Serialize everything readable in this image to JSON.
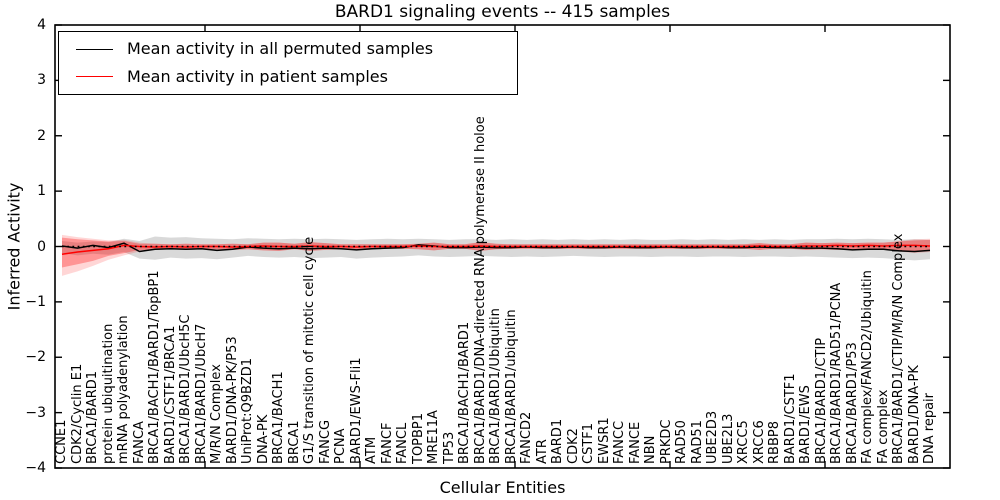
{
  "title": "BARD1 signaling events -- 415 samples",
  "colors": {
    "permuted_line": "#000000",
    "patient_line": "#ff0000",
    "permuted_band": "#000000",
    "patient_band": "#ff0000",
    "background": "#ffffff"
  },
  "chart_data": {
    "type": "line",
    "title": "BARD1 signaling events -- 415 samples",
    "xlabel": "Cellular Entities",
    "ylabel": "Inferred Activity",
    "ylim": [
      -4,
      4
    ],
    "grid": false,
    "legend_position": "upper left",
    "baseline": {
      "y": 0,
      "style": "dotted",
      "color": "#000000"
    },
    "yticks": [
      {
        "v": 4,
        "label": "4"
      },
      {
        "v": 3,
        "label": "3"
      },
      {
        "v": 2,
        "label": "2"
      },
      {
        "v": 1,
        "label": "1"
      },
      {
        "v": 0,
        "label": "0"
      },
      {
        "v": -1,
        "label": "−1"
      },
      {
        "v": -2,
        "label": "−2"
      },
      {
        "v": -3,
        "label": "−3"
      },
      {
        "v": -4,
        "label": "−4"
      }
    ],
    "categories": [
      "CCNE1",
      "CDK2/Cyclin E1",
      "BRCA1/BARD1",
      "protein ubiquitination",
      "mRNA polyadenylation",
      "FANCA",
      "BRCA1/BACH1/BARD1/TopBP1",
      "BARD1/CSTF1/BRCA1",
      "BRCA1/BARD1/UbcH5C",
      "BRCA1/BARD1/UbcH7",
      "M/R/N Complex",
      "BARD1/DNA-PK/P53",
      "UniProt:Q9BZD1",
      "DNA-PK",
      "BRCA1/BACH1",
      "BRCA1",
      "G1/S transition of mitotic cell cycle",
      "FANCG",
      "PCNA",
      "BARD1/EWS-Fli1",
      "ATM",
      "FANCF",
      "FANCL",
      "TOPBP1",
      "MRE11A",
      "TP53",
      "BRCA1/BACH1/BARD1",
      "BRCA1/BARD1/DNA-directed RNA polymerase II holoe",
      "BRCA1/BARD1/Ubiquitin",
      "BRCA1/BARD1/ubiquitin",
      "FANCD2",
      "ATR",
      "BARD1",
      "CDK2",
      "CSTF1",
      "EWSR1",
      "FANCC",
      "FANCE",
      "NBN",
      "PRKDC",
      "RAD50",
      "RAD51",
      "UBE2D3",
      "UBE2L3",
      "XRCC5",
      "XRCC6",
      "RBBP8",
      "BARD1/CSTF1",
      "BARD1/EWS",
      "BRCA1/BARD1/CTIP",
      "BRCA1/BARD1/RAD51/PCNA",
      "BRCA1/BARD1/P53",
      "FA complex/FANCD2/Ubiquitin",
      "FA complex",
      "BRCA1/BARD1/CTIP/M/R/N Complex",
      "BARD1/DNA-PK",
      "DNA repair"
    ],
    "series": [
      {
        "name": "Mean activity in all permuted samples",
        "color": "#000000",
        "band_opacity": 0.15,
        "values": [
          0.01,
          -0.03,
          0.02,
          -0.02,
          0.06,
          -0.09,
          -0.05,
          -0.04,
          -0.05,
          -0.04,
          -0.07,
          -0.05,
          -0.01,
          -0.03,
          -0.04,
          -0.03,
          -0.04,
          -0.03,
          -0.04,
          -0.06,
          -0.04,
          -0.03,
          -0.02,
          0.03,
          0.01,
          -0.02,
          -0.02,
          -0.01,
          -0.02,
          -0.02,
          -0.01,
          -0.02,
          -0.02,
          -0.01,
          -0.02,
          -0.02,
          -0.01,
          -0.02,
          -0.02,
          -0.01,
          -0.02,
          -0.02,
          -0.01,
          -0.02,
          -0.02,
          -0.01,
          -0.02,
          -0.02,
          -0.03,
          -0.03,
          -0.04,
          -0.06,
          -0.05,
          -0.05,
          -0.08,
          -0.09,
          -0.07
        ],
        "band_upper": [
          0.1,
          0.07,
          0.09,
          0.08,
          0.14,
          0.1,
          0.18,
          0.16,
          0.17,
          0.15,
          0.14,
          0.13,
          0.15,
          0.14,
          0.13,
          0.14,
          0.13,
          0.14,
          0.13,
          0.12,
          0.13,
          0.14,
          0.13,
          0.14,
          0.13,
          0.12,
          0.13,
          0.13,
          0.12,
          0.13,
          0.12,
          0.13,
          0.12,
          0.13,
          0.12,
          0.13,
          0.12,
          0.13,
          0.12,
          0.12,
          0.13,
          0.12,
          0.13,
          0.12,
          0.13,
          0.12,
          0.13,
          0.12,
          0.13,
          0.13,
          0.14,
          0.13,
          0.14,
          0.13,
          0.12,
          0.13,
          0.12
        ],
        "band_lower": [
          -0.12,
          -0.16,
          -0.13,
          -0.15,
          -0.1,
          -0.22,
          -0.24,
          -0.2,
          -0.22,
          -0.21,
          -0.23,
          -0.2,
          -0.17,
          -0.19,
          -0.2,
          -0.19,
          -0.21,
          -0.2,
          -0.19,
          -0.22,
          -0.2,
          -0.19,
          -0.18,
          -0.16,
          -0.18,
          -0.19,
          -0.18,
          -0.17,
          -0.18,
          -0.19,
          -0.18,
          -0.19,
          -0.18,
          -0.17,
          -0.18,
          -0.19,
          -0.18,
          -0.18,
          -0.19,
          -0.18,
          -0.18,
          -0.19,
          -0.18,
          -0.18,
          -0.19,
          -0.18,
          -0.18,
          -0.19,
          -0.18,
          -0.19,
          -0.2,
          -0.21,
          -0.2,
          -0.21,
          -0.23,
          -0.25,
          -0.23
        ]
      },
      {
        "name": "Mean activity in patient samples",
        "color": "#ff0000",
        "band_opacity": 0.3,
        "outer_band_opacity": 0.16,
        "values": [
          -0.14,
          -0.1,
          -0.07,
          -0.04,
          0.02,
          0.0,
          -0.01,
          0.0,
          -0.01,
          0.0,
          0.0,
          -0.01,
          0.0,
          0.01,
          0.0,
          0.0,
          0.01,
          0.0,
          0.0,
          -0.01,
          0.0,
          0.0,
          0.0,
          0.01,
          0.0,
          0.0,
          0.0,
          0.01,
          0.0,
          0.0,
          0.0,
          0.0,
          0.0,
          0.0,
          0.0,
          0.0,
          0.0,
          0.0,
          0.0,
          0.0,
          0.0,
          0.0,
          0.0,
          0.0,
          0.0,
          0.01,
          0.0,
          0.0,
          0.01,
          0.01,
          0.02,
          0.01,
          0.02,
          0.01,
          0.02,
          0.02,
          0.01
        ],
        "band_upper": [
          0.16,
          0.13,
          0.11,
          0.09,
          0.1,
          0.05,
          0.05,
          0.04,
          0.05,
          0.04,
          0.04,
          0.05,
          0.04,
          0.07,
          0.07,
          0.05,
          0.08,
          0.06,
          0.04,
          0.04,
          0.04,
          0.04,
          0.04,
          0.05,
          0.07,
          0.04,
          0.04,
          0.08,
          0.05,
          0.04,
          0.04,
          0.04,
          0.04,
          0.04,
          0.04,
          0.04,
          0.04,
          0.04,
          0.04,
          0.04,
          0.04,
          0.04,
          0.04,
          0.04,
          0.04,
          0.06,
          0.04,
          0.04,
          0.07,
          0.06,
          0.07,
          0.06,
          0.07,
          0.07,
          0.09,
          0.11,
          0.12
        ],
        "band_lower": [
          -0.38,
          -0.32,
          -0.26,
          -0.17,
          -0.12,
          -0.06,
          -0.06,
          -0.05,
          -0.06,
          -0.05,
          -0.05,
          -0.06,
          -0.05,
          -0.07,
          -0.08,
          -0.05,
          -0.08,
          -0.06,
          -0.05,
          -0.05,
          -0.04,
          -0.04,
          -0.04,
          -0.05,
          -0.07,
          -0.04,
          -0.04,
          -0.08,
          -0.05,
          -0.04,
          -0.04,
          -0.04,
          -0.04,
          -0.04,
          -0.04,
          -0.04,
          -0.04,
          -0.04,
          -0.04,
          -0.04,
          -0.04,
          -0.04,
          -0.04,
          -0.04,
          -0.04,
          -0.06,
          -0.04,
          -0.04,
          -0.06,
          -0.05,
          -0.06,
          -0.05,
          -0.06,
          -0.06,
          -0.08,
          -0.1,
          -0.08
        ],
        "outer_band_upper": [
          0.21,
          0.17,
          0.14,
          0.11,
          0.12,
          0.07,
          0.05,
          0.04,
          0.05,
          0.04,
          0.04,
          0.05,
          0.04,
          0.07,
          0.07,
          0.05,
          0.08,
          0.06,
          0.04,
          0.04,
          0.04,
          0.04,
          0.04,
          0.05,
          0.07,
          0.04,
          0.04,
          0.08,
          0.05,
          0.04,
          0.04,
          0.04,
          0.04,
          0.04,
          0.04,
          0.04,
          0.04,
          0.04,
          0.04,
          0.04,
          0.04,
          0.04,
          0.04,
          0.04,
          0.04,
          0.06,
          0.04,
          0.04,
          0.07,
          0.06,
          0.07,
          0.06,
          0.07,
          0.07,
          0.1,
          0.13,
          0.14
        ],
        "outer_band_lower": [
          -0.53,
          -0.45,
          -0.35,
          -0.24,
          -0.16,
          -0.09,
          -0.06,
          -0.05,
          -0.06,
          -0.05,
          -0.05,
          -0.06,
          -0.05,
          -0.07,
          -0.08,
          -0.05,
          -0.08,
          -0.06,
          -0.05,
          -0.05,
          -0.04,
          -0.04,
          -0.04,
          -0.05,
          -0.07,
          -0.04,
          -0.04,
          -0.08,
          -0.05,
          -0.04,
          -0.04,
          -0.04,
          -0.04,
          -0.04,
          -0.04,
          -0.04,
          -0.04,
          -0.04,
          -0.04,
          -0.04,
          -0.04,
          -0.04,
          -0.04,
          -0.04,
          -0.04,
          -0.06,
          -0.04,
          -0.04,
          -0.06,
          -0.05,
          -0.06,
          -0.05,
          -0.06,
          -0.06,
          -0.09,
          -0.12,
          -0.1
        ]
      }
    ]
  }
}
